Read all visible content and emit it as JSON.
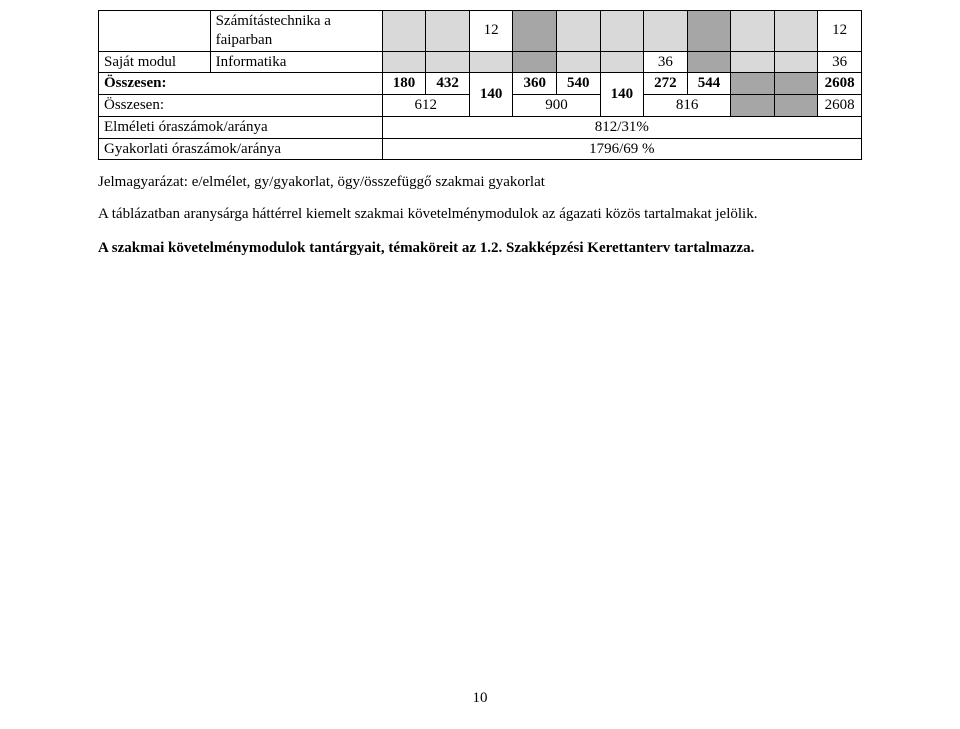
{
  "table": {
    "rows": {
      "r1": {
        "label2": "Számítástechnika a faiparban",
        "c3": "12",
        "c12": "12"
      },
      "r2": {
        "label1": "Saját modul",
        "label2": "Informatika",
        "c7": "36",
        "c12": "36"
      },
      "r3": {
        "label1": "Összesen:",
        "c1": "180",
        "c2": "432",
        "c3_rowspan": "140",
        "c4": "360",
        "c5": "540",
        "c6_rowspan": "140",
        "c7": "272",
        "c8": "544",
        "c9": "2608"
      },
      "r4": {
        "label1": "Összesen:",
        "c1": "612",
        "c4": "900",
        "c7": "816",
        "c9": "2608"
      },
      "r5": {
        "label": "Elméleti óraszámok/aránya",
        "val": "812/31%"
      },
      "r6": {
        "label": "Gyakorlati óraszámok/aránya",
        "val": "1796/69 %"
      }
    }
  },
  "legend": "Jelmagyarázat: e/elmélet, gy/gyakorlat, ögy/összefüggő szakmai gyakorlat",
  "para": "A táblázatban aranysárga háttérrel kiemelt szakmai követelménymodulok az ágazati közös tartalmakat jelölik.",
  "closing": "A szakmai követelménymodulok tantárgyait, témaköreit az 1.2. Szakképzési Kerettanterv tartalmazza.",
  "pagenum": "10"
}
